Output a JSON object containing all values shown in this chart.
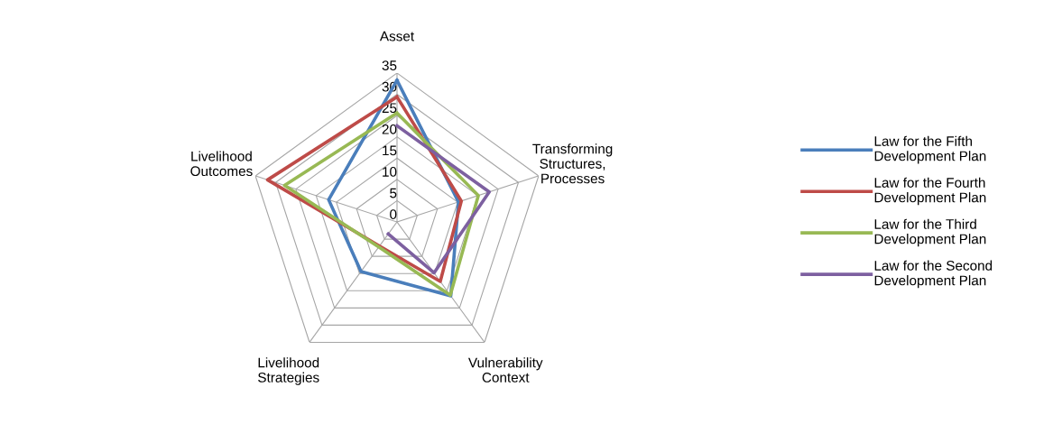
{
  "chart_data": {
    "type": "radar",
    "categories": [
      "Asset",
      "Transforming\nStructures,\nProcesses",
      "Vulnerability\nContext",
      "Livelihood\nStrategies",
      "Livelihood\nOutcomes"
    ],
    "series": [
      {
        "name": "Law for the Fifth\nDevelopment Plan",
        "color": "#4a7ebb",
        "values": [
          33.3,
          15.2,
          21.5,
          14.4,
          16.9
        ]
      },
      {
        "name": "Law for the Fourth\nDevelopment Plan",
        "color": "#be4b48",
        "values": [
          29.4,
          15.9,
          17.3,
          7,
          32
        ]
      },
      {
        "name": "Law for the Third\nDevelopment Plan",
        "color": "#98b954",
        "values": [
          25.6,
          20.1,
          21.3,
          7.3,
          27.8
        ]
      },
      {
        "name": "Law for the Second\nDevelopment Plan",
        "color": "#7d60a0",
        "values": [
          22.6,
          22.8,
          14.8,
          3.5,
          null
        ]
      }
    ],
    "ylim": [
      0,
      35
    ],
    "yticks": [
      0,
      5,
      10,
      15,
      20,
      25,
      30,
      35
    ],
    "grid": true,
    "legend": "right"
  }
}
